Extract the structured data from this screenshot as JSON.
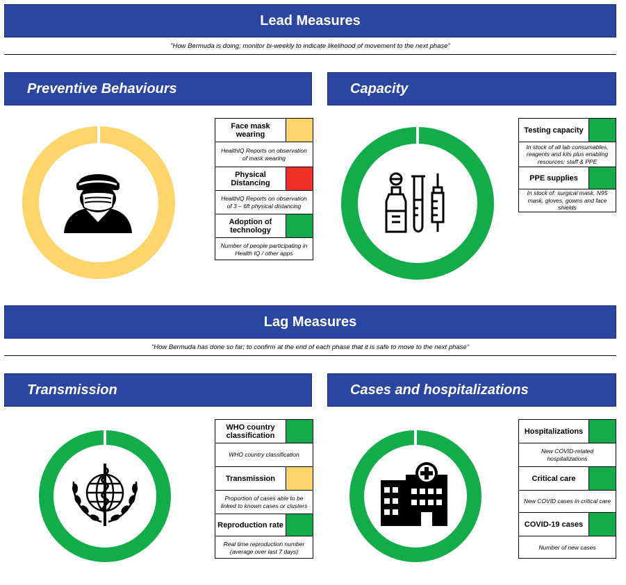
{
  "colors": {
    "header_blue": "#2b46a0",
    "yellow": "#fdd56a",
    "red": "#f2302a",
    "green": "#12ac4b"
  },
  "lead": {
    "title": "Lead Measures",
    "subtitle": "\"How Bermuda is doing; monitor bi-weekly to indicate likelihood of movement to the next phase\""
  },
  "lag": {
    "title": "Lag Measures",
    "subtitle": "\"How Bermuda has done so far; to confirm at the end of each phase that it is safe to move to the next phase\""
  },
  "preventive": {
    "title": "Preventive Behaviours",
    "ring_status": "yellow",
    "icon": "masked-person-icon",
    "rows": [
      {
        "label": "Face mask wearing",
        "status": "yellow",
        "desc": "HealthIQ Reports on observation of mask wearing"
      },
      {
        "label": "Physical Distancing",
        "status": "red",
        "desc": "HealthIQ Reports on observation of 3 – 6ft physical distancing"
      },
      {
        "label": "Adoption of technology",
        "status": "green",
        "desc": "Number of people participating in Health IQ / other apps"
      }
    ]
  },
  "capacity": {
    "title": "Capacity",
    "ring_status": "green",
    "icon": "lab-equipment-icon",
    "rows": [
      {
        "label": "Testing capacity",
        "status": "green",
        "desc": "In stock of all lab consumables, reagents and kits plus enabling resources: staff & PPE"
      },
      {
        "label": "PPE supplies",
        "status": "green",
        "desc": "In stock of: surgical mask, N95 mask, gloves, gowns and face shields"
      }
    ]
  },
  "transmission": {
    "title": "Transmission",
    "ring_status": "green",
    "icon": "who-emblem-icon",
    "rows": [
      {
        "label": "WHO country classification",
        "status": "green",
        "desc": "WHO country classification"
      },
      {
        "label": "Transmission",
        "status": "yellow",
        "desc": "Proportion of cases able to be linked to known cases or clusters"
      },
      {
        "label": "Reproduction rate",
        "status": "green",
        "desc": "Real time reproduction number (average over last 7 days)"
      }
    ]
  },
  "cases": {
    "title": "Cases and hospitalizations",
    "ring_status": "green",
    "icon": "hospital-icon",
    "rows": [
      {
        "label": "Hospitalizations",
        "status": "green",
        "desc": "New COVID-related hospitalizations"
      },
      {
        "label": "Critical care",
        "status": "green",
        "desc": "New COVID cases in critical care"
      },
      {
        "label": "COVID-19 cases",
        "status": "green",
        "desc": "Number of new cases"
      }
    ]
  }
}
